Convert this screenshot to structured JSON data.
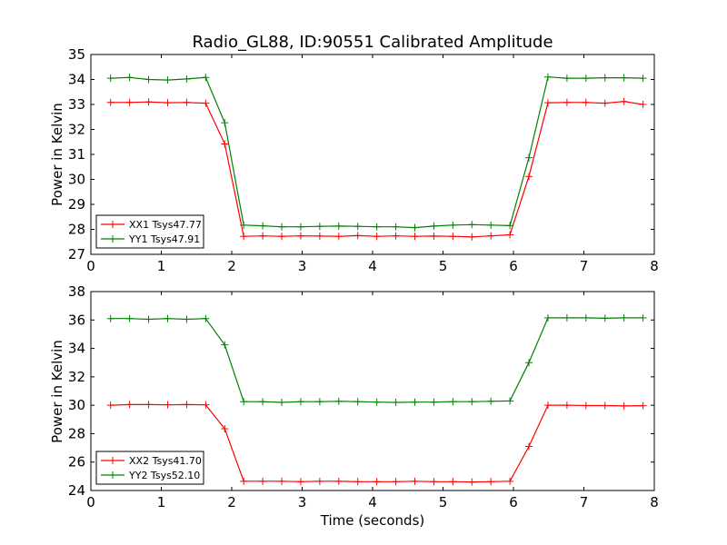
{
  "figure_title": "Radio_GL88, ID:90551 Calibrated Amplitude",
  "chart_data": [
    {
      "type": "line",
      "title": "Radio_GL88, ID:90551 Calibrated Amplitude",
      "xlabel": "",
      "ylabel": "Power in Kelvin",
      "xlim": [
        0,
        8
      ],
      "ylim": [
        27,
        35
      ],
      "xticks": [
        0,
        1,
        2,
        3,
        4,
        5,
        6,
        7,
        8
      ],
      "yticks": [
        27,
        28,
        29,
        30,
        31,
        32,
        33,
        34,
        35
      ],
      "grid": false,
      "legend_position": "lower-left",
      "x": [
        0.28,
        0.55,
        0.82,
        1.09,
        1.36,
        1.63,
        1.9,
        2.17,
        2.44,
        2.71,
        2.98,
        3.25,
        3.52,
        3.79,
        4.06,
        4.33,
        4.6,
        4.87,
        5.14,
        5.41,
        5.68,
        5.95,
        6.22,
        6.49,
        6.76,
        7.03,
        7.3,
        7.57,
        7.84
      ],
      "series": [
        {
          "name": "XX1 Tsys47.77",
          "color": "#ff0000",
          "values": [
            33.08,
            33.08,
            33.1,
            33.07,
            33.08,
            33.05,
            31.42,
            27.72,
            27.74,
            27.72,
            27.74,
            27.73,
            27.72,
            27.75,
            27.72,
            27.74,
            27.72,
            27.73,
            27.72,
            27.7,
            27.74,
            27.78,
            30.12,
            33.07,
            33.08,
            33.08,
            33.05,
            33.12,
            33.0
          ]
        },
        {
          "name": "YY1 Tsys47.91",
          "color": "#008000",
          "values": [
            34.05,
            34.08,
            34.0,
            33.98,
            34.02,
            34.08,
            32.27,
            28.17,
            28.14,
            28.1,
            28.1,
            28.12,
            28.13,
            28.12,
            28.1,
            28.1,
            28.07,
            28.13,
            28.17,
            28.19,
            28.17,
            28.15,
            30.87,
            34.1,
            34.05,
            34.05,
            34.07,
            34.07,
            34.05
          ]
        }
      ]
    },
    {
      "type": "line",
      "title": "",
      "xlabel": "Time (seconds)",
      "ylabel": "Power in Kelvin",
      "xlim": [
        0,
        8
      ],
      "ylim": [
        24,
        38
      ],
      "xticks": [
        0,
        1,
        2,
        3,
        4,
        5,
        6,
        7,
        8
      ],
      "yticks": [
        24,
        26,
        28,
        30,
        32,
        34,
        36,
        38
      ],
      "grid": false,
      "legend_position": "lower-left",
      "x": [
        0.28,
        0.55,
        0.82,
        1.09,
        1.36,
        1.63,
        1.9,
        2.17,
        2.44,
        2.71,
        2.98,
        3.25,
        3.52,
        3.79,
        4.06,
        4.33,
        4.6,
        4.87,
        5.14,
        5.41,
        5.68,
        5.95,
        6.22,
        6.49,
        6.76,
        7.03,
        7.3,
        7.57,
        7.84
      ],
      "series": [
        {
          "name": "XX2 Tsys41.70",
          "color": "#ff0000",
          "values": [
            30.0,
            30.05,
            30.05,
            30.03,
            30.05,
            30.03,
            28.35,
            24.65,
            24.65,
            24.65,
            24.62,
            24.65,
            24.65,
            24.62,
            24.62,
            24.62,
            24.65,
            24.62,
            24.62,
            24.6,
            24.62,
            24.65,
            27.1,
            30.0,
            30.0,
            29.98,
            29.98,
            29.95,
            29.97
          ]
        },
        {
          "name": "YY2 Tsys52.10",
          "color": "#008000",
          "values": [
            36.1,
            36.1,
            36.05,
            36.1,
            36.05,
            36.1,
            34.25,
            30.25,
            30.25,
            30.2,
            30.25,
            30.25,
            30.28,
            30.25,
            30.22,
            30.2,
            30.22,
            30.22,
            30.25,
            30.25,
            30.28,
            30.3,
            33.0,
            36.15,
            36.15,
            36.15,
            36.12,
            36.15,
            36.15
          ]
        }
      ]
    }
  ]
}
